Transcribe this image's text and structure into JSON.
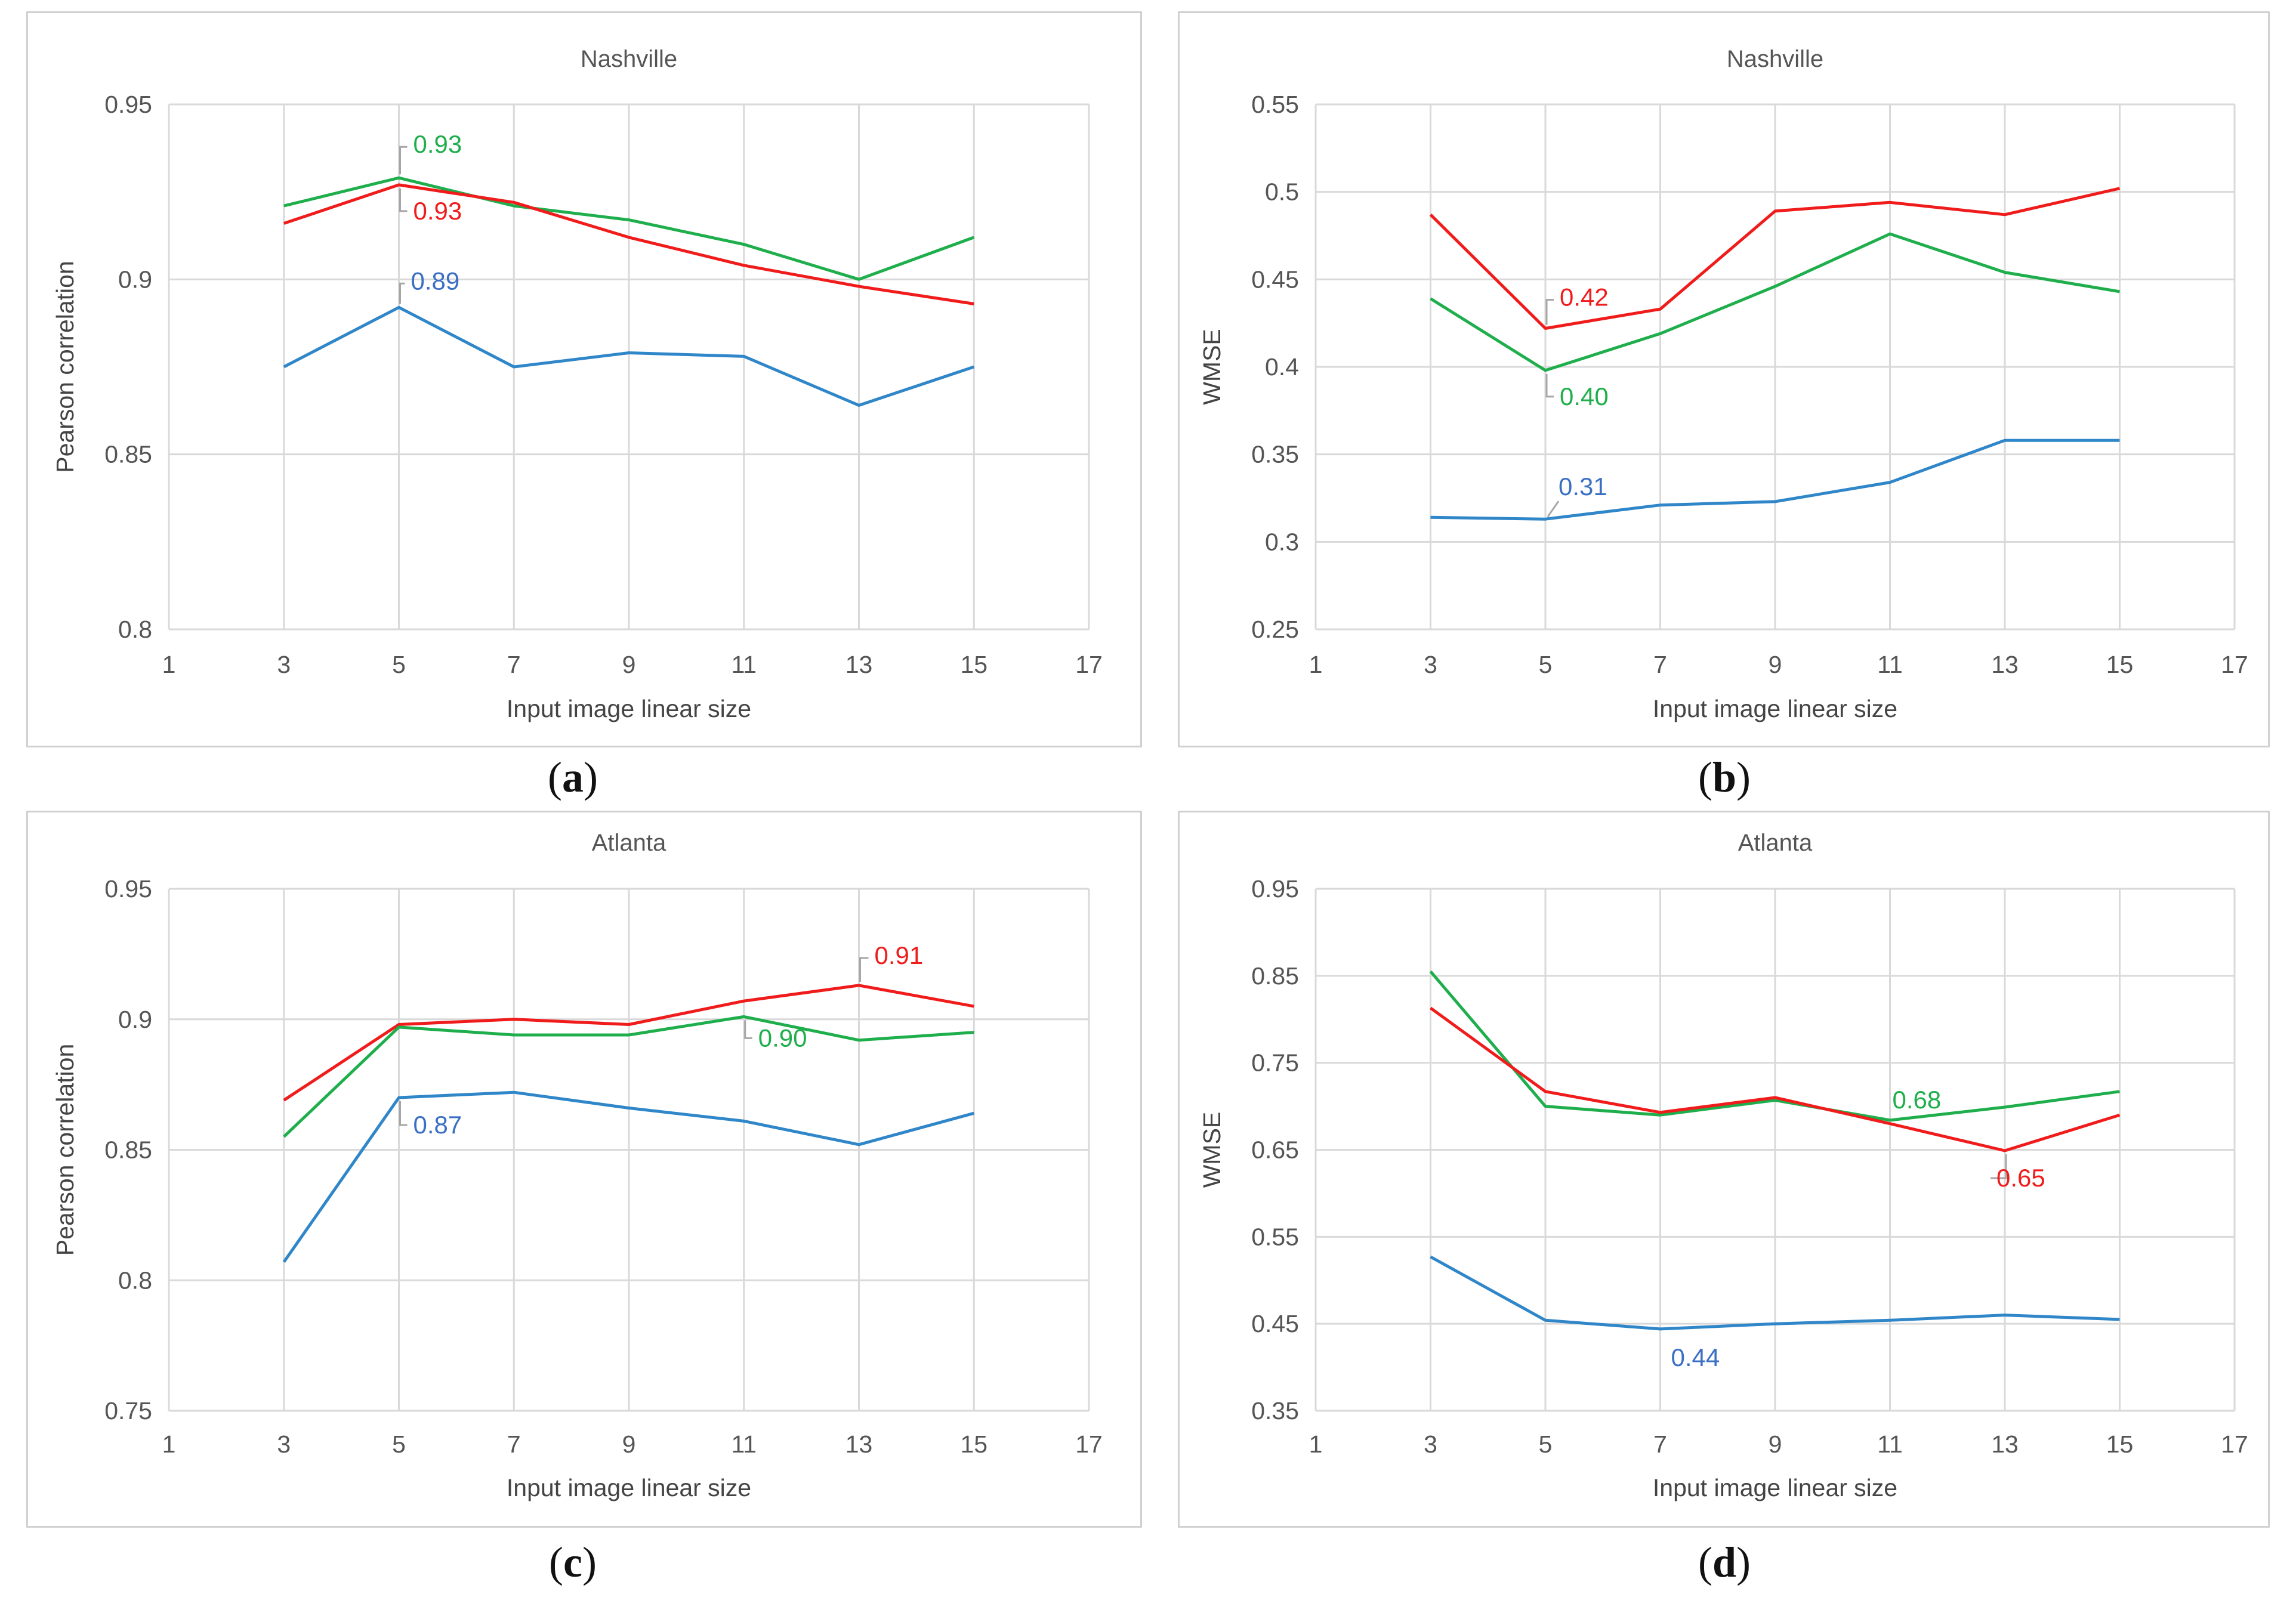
{
  "colors": {
    "blue": "#2f86c8",
    "green": "#1fae4c",
    "red": "#f01c1c",
    "blue_label": "#3b6fc4",
    "grid": "#d9d9d9",
    "frame": "#d0d0d0"
  },
  "chart_data": [
    {
      "id": "a",
      "type": "line",
      "title": "Nashville",
      "xlabel": "Input image linear size",
      "ylabel": "Pearson correlation",
      "caption": "a",
      "x": [
        3,
        5,
        7,
        9,
        11,
        13,
        15
      ],
      "xlim": [
        1,
        17
      ],
      "xticks": [
        "1",
        "3",
        "5",
        "7",
        "9",
        "11",
        "13",
        "15",
        "17"
      ],
      "ylim": [
        0.8,
        0.95
      ],
      "yticks": [
        "0.8",
        "0.85",
        "0.9",
        "0.95"
      ],
      "series": [
        {
          "name": "green",
          "color": "#1fae4c",
          "values": [
            0.921,
            0.929,
            0.921,
            0.917,
            0.91,
            0.9,
            0.912
          ]
        },
        {
          "name": "red",
          "color": "#f01c1c",
          "values": [
            0.916,
            0.927,
            0.922,
            0.912,
            0.904,
            0.898,
            0.893
          ]
        },
        {
          "name": "blue",
          "color": "#2f86c8",
          "values": [
            0.875,
            0.892,
            0.875,
            0.879,
            0.878,
            0.864,
            0.875
          ]
        }
      ],
      "annotations": [
        {
          "text": "0.93",
          "series": "green",
          "x": 5,
          "position": "above"
        },
        {
          "text": "0.93",
          "series": "red",
          "x": 5,
          "position": "below"
        },
        {
          "text": "0.89",
          "series": "blue",
          "x": 5,
          "position": "above"
        }
      ]
    },
    {
      "id": "b",
      "type": "line",
      "title": "Nashville",
      "xlabel": "Input image linear size",
      "ylabel": "WMSE",
      "caption": "b",
      "x": [
        3,
        5,
        7,
        9,
        11,
        13,
        15
      ],
      "xlim": [
        1,
        17
      ],
      "xticks": [
        "1",
        "3",
        "5",
        "7",
        "9",
        "11",
        "13",
        "15",
        "17"
      ],
      "ylim": [
        0.25,
        0.55
      ],
      "yticks": [
        "0.25",
        "0.3",
        "0.35",
        "0.4",
        "0.45",
        "0.5",
        "0.55"
      ],
      "series": [
        {
          "name": "red",
          "color": "#f01c1c",
          "values": [
            0.487,
            0.422,
            0.433,
            0.489,
            0.494,
            0.487,
            0.502
          ]
        },
        {
          "name": "green",
          "color": "#1fae4c",
          "values": [
            0.439,
            0.398,
            0.419,
            0.446,
            0.476,
            0.454,
            0.443
          ]
        },
        {
          "name": "blue",
          "color": "#2f86c8",
          "values": [
            0.314,
            0.313,
            0.321,
            0.323,
            0.334,
            0.358,
            0.358
          ]
        }
      ],
      "annotations": [
        {
          "text": "0.42",
          "series": "red",
          "x": 5,
          "position": "above"
        },
        {
          "text": "0.40",
          "series": "green",
          "x": 5,
          "position": "below"
        },
        {
          "text": "0.31",
          "series": "blue",
          "x": 5,
          "position": "above"
        }
      ]
    },
    {
      "id": "c",
      "type": "line",
      "title": "Atlanta",
      "xlabel": "Input image linear size",
      "ylabel": "Pearson correlation",
      "caption": "c",
      "x": [
        3,
        5,
        7,
        9,
        11,
        13,
        15
      ],
      "xlim": [
        1,
        17
      ],
      "xticks": [
        "1",
        "3",
        "5",
        "7",
        "9",
        "11",
        "13",
        "15",
        "17"
      ],
      "ylim": [
        0.75,
        0.95
      ],
      "yticks": [
        "0.75",
        "0.8",
        "0.85",
        "0.9",
        "0.95"
      ],
      "series": [
        {
          "name": "red",
          "color": "#f01c1c",
          "values": [
            0.869,
            0.898,
            0.9,
            0.898,
            0.907,
            0.913,
            0.905
          ]
        },
        {
          "name": "green",
          "color": "#1fae4c",
          "values": [
            0.855,
            0.897,
            0.894,
            0.894,
            0.901,
            0.892,
            0.895
          ]
        },
        {
          "name": "blue",
          "color": "#2f86c8",
          "values": [
            0.807,
            0.87,
            0.872,
            0.866,
            0.861,
            0.852,
            0.864
          ]
        }
      ],
      "annotations": [
        {
          "text": "0.91",
          "series": "red",
          "x": 13,
          "position": "above"
        },
        {
          "text": "0.90",
          "series": "green",
          "x": 11,
          "position": "below"
        },
        {
          "text": "0.87",
          "series": "blue",
          "x": 5,
          "position": "below"
        }
      ]
    },
    {
      "id": "d",
      "type": "line",
      "title": "Atlanta",
      "xlabel": "Input image linear size",
      "ylabel": "WMSE",
      "caption": "d",
      "x": [
        3,
        5,
        7,
        9,
        11,
        13,
        15
      ],
      "xlim": [
        1,
        17
      ],
      "xticks": [
        "1",
        "3",
        "5",
        "7",
        "9",
        "11",
        "13",
        "15",
        "17"
      ],
      "ylim": [
        0.35,
        0.95
      ],
      "yticks": [
        "0.35",
        "0.45",
        "0.55",
        "0.65",
        "0.75",
        "0.85",
        "0.95"
      ],
      "series": [
        {
          "name": "green",
          "color": "#1fae4c",
          "values": [
            0.855,
            0.7,
            0.69,
            0.707,
            0.684,
            0.699,
            0.717
          ]
        },
        {
          "name": "red",
          "color": "#f01c1c",
          "values": [
            0.813,
            0.717,
            0.693,
            0.71,
            0.68,
            0.649,
            0.69
          ]
        },
        {
          "name": "blue",
          "color": "#2f86c8",
          "values": [
            0.527,
            0.454,
            0.444,
            0.45,
            0.454,
            0.46,
            0.455
          ]
        }
      ],
      "annotations": [
        {
          "text": "0.68",
          "series": "green",
          "x": 11,
          "position": "above"
        },
        {
          "text": "0.65",
          "series": "red",
          "x": 13,
          "position": "below"
        },
        {
          "text": "0.44",
          "series": "blue",
          "x": 7,
          "position": "below"
        }
      ]
    }
  ]
}
